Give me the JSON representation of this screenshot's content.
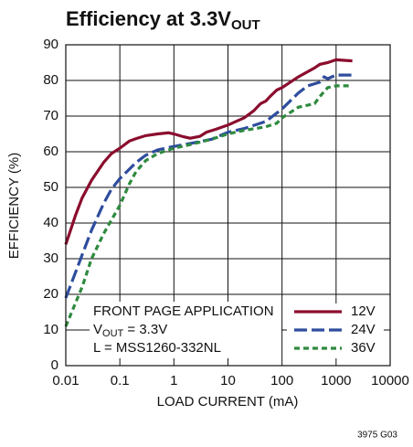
{
  "chart_data": {
    "type": "line",
    "title": "Efficiency at 3.3V",
    "title_sub": "OUT",
    "xlabel": "LOAD CURRENT (mA)",
    "ylabel": "EFFICIENCY (%)",
    "xscale": "log",
    "xlim": [
      0.01,
      10000
    ],
    "ylim": [
      0,
      90
    ],
    "xticks": [
      0.01,
      0.1,
      1,
      10,
      100,
      1000,
      10000
    ],
    "yticks": [
      0,
      10,
      20,
      30,
      40,
      50,
      60,
      70,
      80,
      90
    ],
    "grid": true,
    "legend": "lower right",
    "annotation": {
      "line1": "FRONT PAGE APPLICATION",
      "line2_main": "V",
      "line2_sub": "OUT",
      "line2_rest": " = 3.3V",
      "line3": "L = MSS1260-332NL"
    },
    "footnote": "3975 G03",
    "series": [
      {
        "name": "12V",
        "color": "#8b0d2e",
        "dash": "solid",
        "x": [
          0.01,
          0.015,
          0.02,
          0.03,
          0.05,
          0.07,
          0.1,
          0.15,
          0.2,
          0.3,
          0.5,
          0.8,
          1,
          1.5,
          2,
          3,
          4,
          6,
          10,
          20,
          30,
          40,
          50,
          60,
          80,
          100,
          200,
          400,
          500,
          700,
          1000,
          2000
        ],
        "values": [
          34,
          42,
          47,
          52,
          57,
          59.5,
          61,
          63,
          63.7,
          64.5,
          65,
          65.3,
          65,
          64.2,
          63.8,
          64.3,
          65.5,
          66.3,
          67.5,
          69.5,
          71.5,
          73.5,
          74.2,
          75.5,
          77.3,
          78,
          81,
          83.5,
          84.5,
          85,
          85.8,
          85.5
        ]
      },
      {
        "name": "24V",
        "color": "#2f4d9e",
        "dash": "long",
        "x": [
          0.01,
          0.02,
          0.03,
          0.05,
          0.07,
          0.1,
          0.2,
          0.3,
          0.5,
          1,
          2,
          5,
          10,
          20,
          50,
          100,
          200,
          300,
          500,
          600,
          700,
          1000,
          2000
        ],
        "values": [
          19,
          31,
          38,
          45.5,
          49.5,
          52.5,
          57,
          59,
          60.5,
          61.5,
          62.3,
          63.5,
          65.5,
          66.5,
          68.5,
          72,
          76.5,
          78.5,
          79.5,
          81,
          80.5,
          81.5,
          81.5
        ]
      },
      {
        "name": "36V",
        "color": "#2e8a3e",
        "dash": "short",
        "x": [
          0.01,
          0.02,
          0.03,
          0.05,
          0.1,
          0.15,
          0.2,
          0.3,
          0.5,
          1,
          2,
          5,
          10,
          20,
          50,
          80,
          100,
          200,
          400,
          500,
          700,
          1000,
          2000
        ],
        "values": [
          11,
          22,
          30,
          37,
          45,
          51,
          54.5,
          57.5,
          59.5,
          61,
          62,
          63.5,
          65,
          66,
          67,
          68,
          69.5,
          72.5,
          73.5,
          75.5,
          78,
          78.5,
          78.5
        ]
      }
    ]
  }
}
